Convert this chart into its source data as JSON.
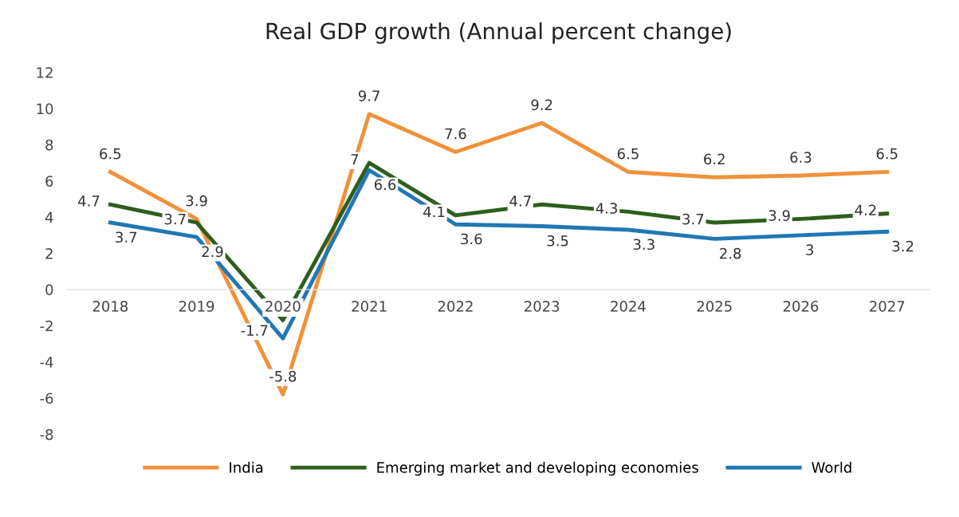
{
  "chart_data": {
    "type": "line",
    "title": "Real GDP growth (Annual percent change)",
    "categories": [
      "2018",
      "2019",
      "2020",
      "2021",
      "2022",
      "2023",
      "2024",
      "2025",
      "2026",
      "2027"
    ],
    "series": [
      {
        "name": "India",
        "color": "#f0913a",
        "values": [
          6.5,
          3.9,
          -5.8,
          9.7,
          7.6,
          9.2,
          6.5,
          6.2,
          6.3,
          6.5
        ]
      },
      {
        "name": "Emerging market and developing economies",
        "color": "#2e5e1e",
        "values": [
          4.7,
          3.7,
          -1.7,
          7,
          4.1,
          4.7,
          4.3,
          3.7,
          3.9,
          4.2
        ]
      },
      {
        "name": "World",
        "color": "#1f78b4",
        "values": [
          3.7,
          2.9,
          -2.7,
          6.6,
          3.6,
          3.5,
          3.3,
          2.8,
          3,
          3.2
        ],
        "value_labels": [
          "3.7",
          "2.9",
          null,
          "6.6",
          "3.6",
          "3.5",
          "3.3",
          "2.8",
          "3",
          "3.2"
        ]
      }
    ],
    "ylim": [
      -8,
      12
    ],
    "yticks": [
      -8,
      -6,
      -4,
      -2,
      0,
      2,
      4,
      6,
      8,
      10,
      12
    ],
    "data_labels": true,
    "legend": "bottom",
    "grid": false,
    "marker": "none",
    "line_style": "solid"
  }
}
